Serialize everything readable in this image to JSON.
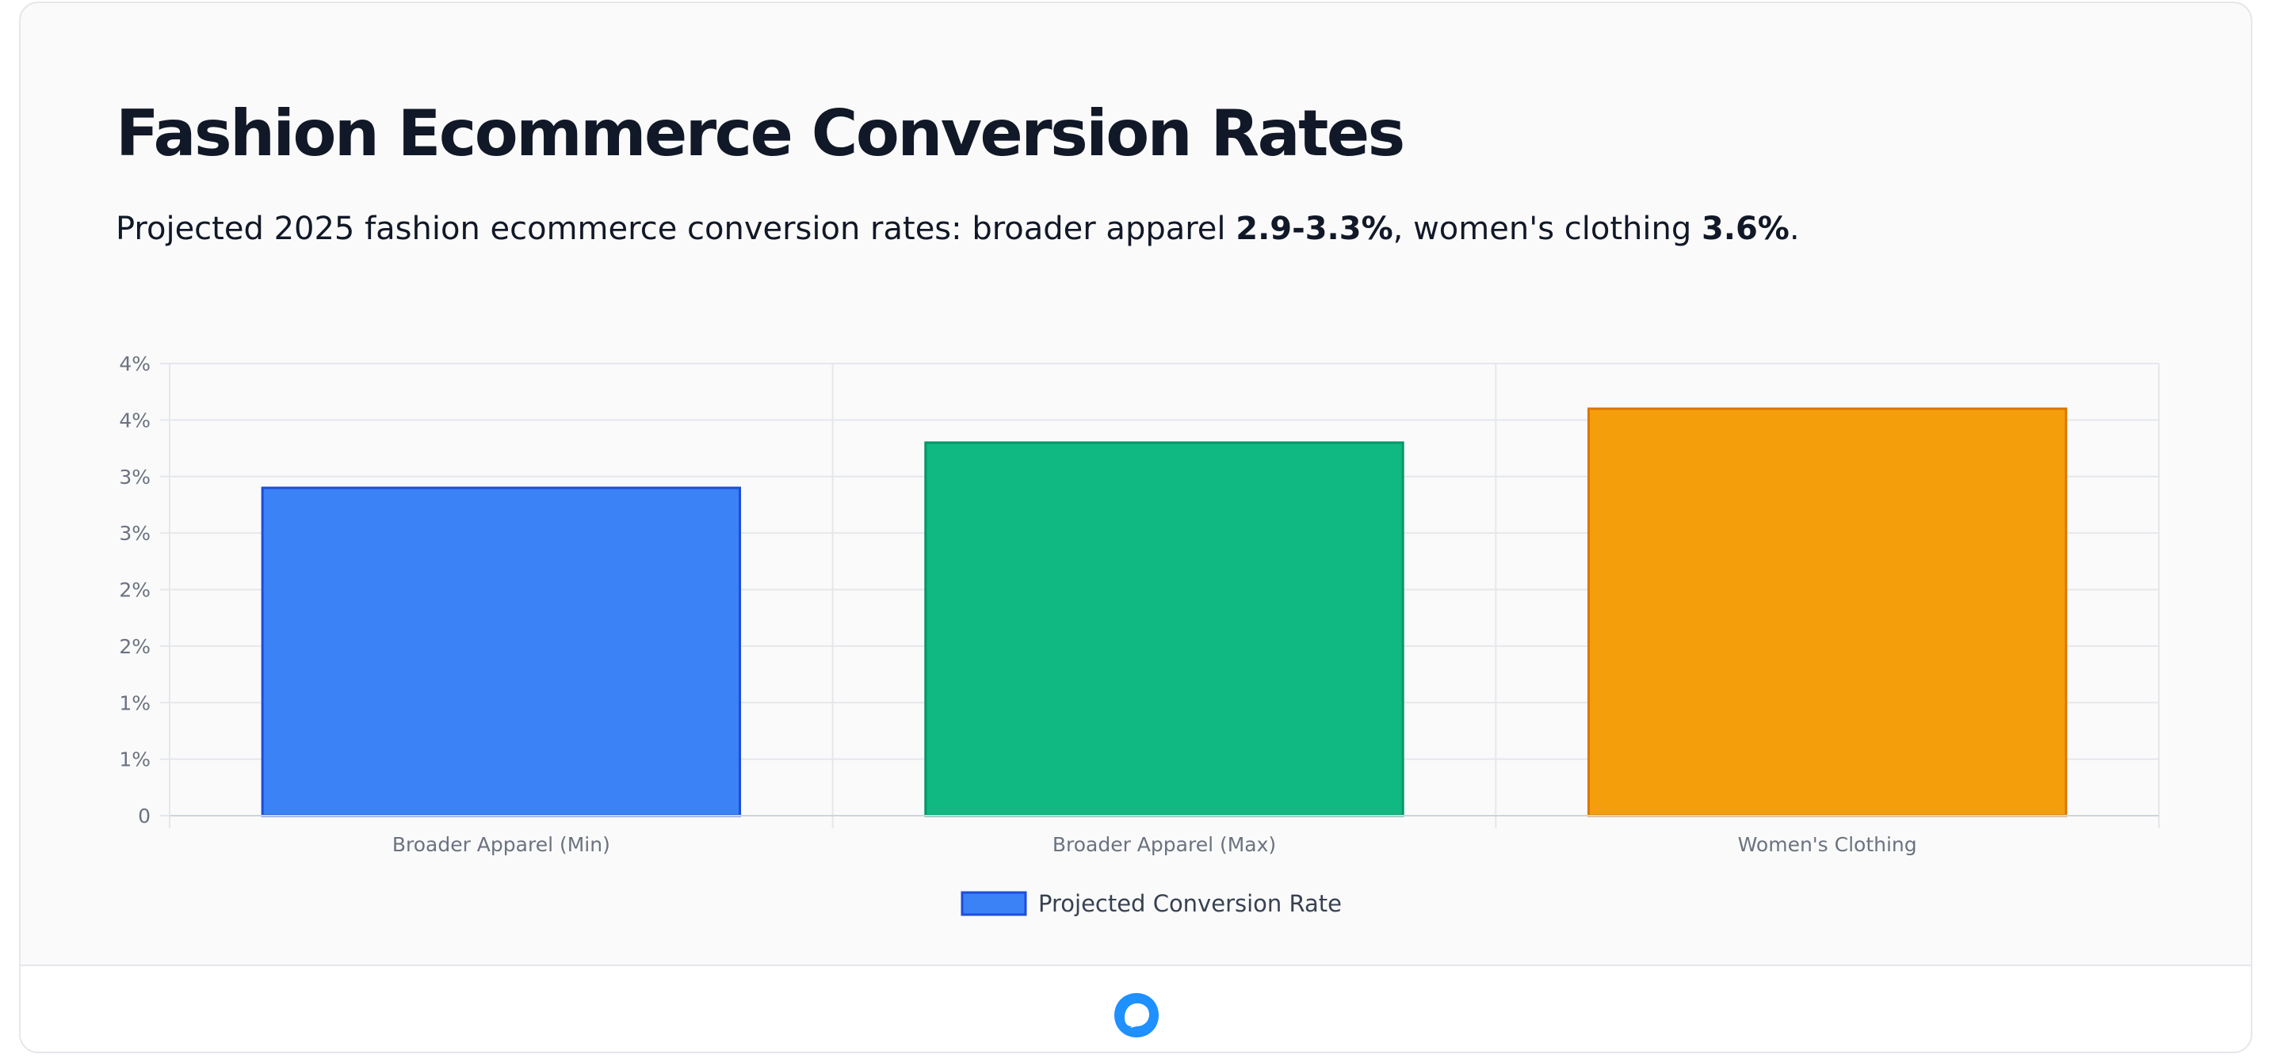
{
  "header": {
    "title": "Fashion Ecommerce Conversion Rates",
    "subtitle_prefix": "Projected 2025 fashion ecommerce conversion rates: broader apparel ",
    "subtitle_bold_1": "2.9-3.3%",
    "subtitle_middle": ", women's clothing ",
    "subtitle_bold_2": "3.6%",
    "subtitle_suffix": "."
  },
  "chart_data": {
    "type": "bar",
    "title": "",
    "xlabel": "",
    "ylabel": "",
    "categories": [
      "Broader Apparel (Min)",
      "Broader Apparel (Max)",
      "Women's Clothing"
    ],
    "series": [
      {
        "name": "Projected Conversion Rate",
        "values": [
          2.9,
          3.3,
          3.6
        ],
        "colors": [
          "#3b82f6",
          "#10b981",
          "#f59e0b"
        ],
        "border_colors": [
          "#1d4ed8",
          "#059669",
          "#d97706"
        ]
      }
    ],
    "ylim": [
      0,
      4
    ],
    "y_tick_values": [
      0,
      0.5,
      1,
      1.5,
      2,
      2.5,
      3,
      3.5,
      4
    ],
    "y_tick_labels": [
      "0",
      "1%",
      "1%",
      "2%",
      "2%",
      "3%",
      "3%",
      "4%",
      "4%"
    ],
    "grid": true,
    "legend": {
      "position": "bottom",
      "label": "Projected Conversion Rate",
      "swatch_color": "#3b82f6",
      "swatch_border": "#1d4ed8"
    },
    "colors": {
      "grid": "#e5e7eb",
      "axis": "#cbd5e1",
      "tick_text": "#6b7280",
      "legend_text": "#374151"
    }
  },
  "footer": {
    "logo_icon": "chat-bubble-logo-icon",
    "logo_color": "#1e90ff"
  }
}
